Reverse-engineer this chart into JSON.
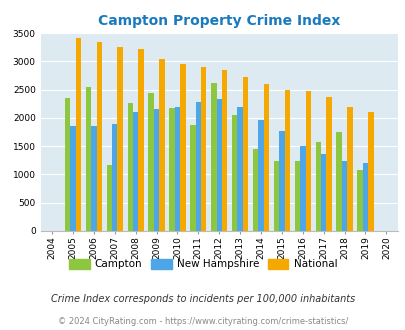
{
  "title": "Campton Property Crime Index",
  "years": [
    2004,
    2005,
    2006,
    2007,
    2008,
    2009,
    2010,
    2011,
    2012,
    2013,
    2014,
    2015,
    2016,
    2017,
    2018,
    2019,
    2020
  ],
  "campton": [
    0,
    2350,
    2550,
    1175,
    2270,
    2440,
    2170,
    1880,
    2620,
    2055,
    1455,
    1240,
    1240,
    1575,
    1750,
    1075,
    0
  ],
  "new_hampshire": [
    0,
    1850,
    1860,
    1900,
    2100,
    2155,
    2185,
    2285,
    2340,
    2200,
    1970,
    1760,
    1500,
    1360,
    1240,
    1200,
    0
  ],
  "national": [
    0,
    3420,
    3340,
    3260,
    3210,
    3045,
    2950,
    2905,
    2850,
    2725,
    2590,
    2500,
    2470,
    2375,
    2195,
    2110,
    0
  ],
  "campton_color": "#8dc63f",
  "nh_color": "#4da6e8",
  "national_color": "#f5a800",
  "bg_color": "#ddeaf2",
  "title_color": "#1a7abf",
  "ylim": [
    0,
    3500
  ],
  "yticks": [
    0,
    500,
    1000,
    1500,
    2000,
    2500,
    3000,
    3500
  ],
  "footnote1": "Crime Index corresponds to incidents per 100,000 inhabitants",
  "footnote2": "© 2024 CityRating.com - https://www.cityrating.com/crime-statistics/",
  "legend_labels": [
    "Campton",
    "New Hampshire",
    "National"
  ]
}
